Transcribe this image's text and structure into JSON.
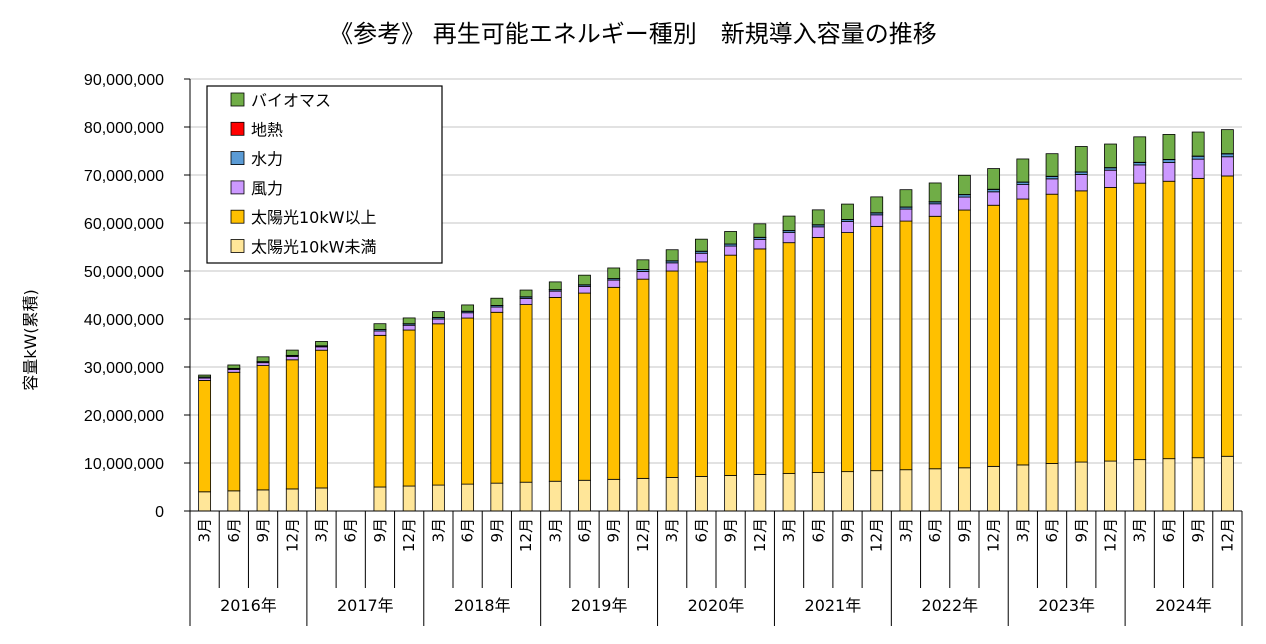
{
  "chart_data": {
    "type": "bar",
    "stacked": true,
    "title": "《参考》 再生可能エネルギー種別　新規導入容量の推移",
    "ylabel": "容量kW(累積)",
    "ylim": [
      0,
      90000000
    ],
    "yticks": [
      "0",
      "10,000,000",
      "20,000,000",
      "30,000,000",
      "40,000,000",
      "50,000,000",
      "60,000,000",
      "70,000,000",
      "80,000,000",
      "90,000,000"
    ],
    "ytick_values": [
      0,
      10000000,
      20000000,
      30000000,
      40000000,
      50000000,
      60000000,
      70000000,
      80000000,
      90000000
    ],
    "grid": true,
    "legend_position": "top-left",
    "years": [
      "2016年",
      "2017年",
      "2018年",
      "2019年",
      "2020年",
      "2021年",
      "2022年",
      "2023年",
      "2024年"
    ],
    "months": [
      "3月",
      "6月",
      "9月",
      "12月"
    ],
    "categories": [
      "2016年3月",
      "2016年6月",
      "2016年9月",
      "2016年12月",
      "2017年3月",
      "2017年6月",
      "2017年9月",
      "2017年12月",
      "2018年3月",
      "2018年6月",
      "2018年9月",
      "2018年12月",
      "2019年3月",
      "2019年6月",
      "2019年9月",
      "2019年12月",
      "2020年3月",
      "2020年6月",
      "2020年9月",
      "2020年12月",
      "2021年3月",
      "2021年6月",
      "2021年9月",
      "2021年12月",
      "2022年3月",
      "2022年6月",
      "2022年9月",
      "2022年12月",
      "2023年3月",
      "2023年6月",
      "2023年9月",
      "2023年12月",
      "2024年3月",
      "2024年6月",
      "2024年9月",
      "2024年12月"
    ],
    "series": [
      {
        "name": "太陽光10kW未満",
        "color": "#ffe699",
        "values": [
          4000000,
          4200000,
          4400000,
          4600000,
          4800000,
          null,
          5000000,
          5200000,
          5400000,
          5600000,
          5800000,
          6000000,
          6200000,
          6400000,
          6600000,
          6800000,
          7000000,
          7200000,
          7400000,
          7600000,
          7800000,
          8000000,
          8200000,
          8400000,
          8600000,
          8800000,
          9000000,
          9300000,
          9600000,
          9900000,
          10200000,
          10400000,
          10700000,
          10900000,
          11100000,
          11400000
        ]
      },
      {
        "name": "太陽光10kW以上",
        "color": "#ffc000",
        "values": [
          23200000,
          24700000,
          25900000,
          26900000,
          28700000,
          null,
          31600000,
          32500000,
          33600000,
          34600000,
          35600000,
          37000000,
          38300000,
          39000000,
          40000000,
          41500000,
          43000000,
          44700000,
          45900000,
          47000000,
          48100000,
          49000000,
          49800000,
          50900000,
          51800000,
          52600000,
          53700000,
          54400000,
          55400000,
          56100000,
          56500000,
          57000000,
          57600000,
          57800000,
          58200000,
          58400000
        ]
      },
      {
        "name": "風力",
        "color": "#cc99ff",
        "values": [
          500000,
          600000,
          600000,
          700000,
          700000,
          null,
          900000,
          1000000,
          1000000,
          1100000,
          1100000,
          1300000,
          1300000,
          1400000,
          1500000,
          1600000,
          1700000,
          1800000,
          1900000,
          2000000,
          2100000,
          2200000,
          2300000,
          2400000,
          2500000,
          2600000,
          2700000,
          2800000,
          3000000,
          3200000,
          3400000,
          3600000,
          3800000,
          3900000,
          4000000,
          4000000
        ]
      },
      {
        "name": "水力",
        "color": "#5b9bd5",
        "values": [
          200000,
          200000,
          200000,
          200000,
          200000,
          null,
          300000,
          300000,
          300000,
          300000,
          300000,
          300000,
          300000,
          300000,
          300000,
          400000,
          400000,
          400000,
          400000,
          400000,
          400000,
          400000,
          400000,
          400000,
          400000,
          400000,
          500000,
          500000,
          500000,
          500000,
          500000,
          500000,
          500000,
          600000,
          600000,
          600000
        ]
      },
      {
        "name": "地熱",
        "color": "#ff0000",
        "values": [
          20000,
          20000,
          20000,
          20000,
          20000,
          null,
          20000,
          20000,
          30000,
          30000,
          30000,
          30000,
          30000,
          30000,
          30000,
          30000,
          30000,
          30000,
          30000,
          30000,
          40000,
          40000,
          40000,
          40000,
          40000,
          40000,
          40000,
          40000,
          40000,
          40000,
          40000,
          50000,
          50000,
          50000,
          50000,
          50000
        ]
      },
      {
        "name": "バイオマス",
        "color": "#70ad47",
        "values": [
          400000,
          700000,
          1000000,
          1100000,
          900000,
          null,
          1200000,
          1200000,
          1200000,
          1300000,
          1500000,
          1400000,
          1600000,
          2000000,
          2200000,
          2000000,
          2300000,
          2500000,
          2600000,
          2800000,
          3000000,
          3100000,
          3200000,
          3300000,
          3600000,
          3900000,
          4000000,
          4300000,
          4800000,
          4700000,
          5300000,
          4900000,
          5300000,
          5200000,
          5000000,
          5000000
        ]
      }
    ]
  }
}
